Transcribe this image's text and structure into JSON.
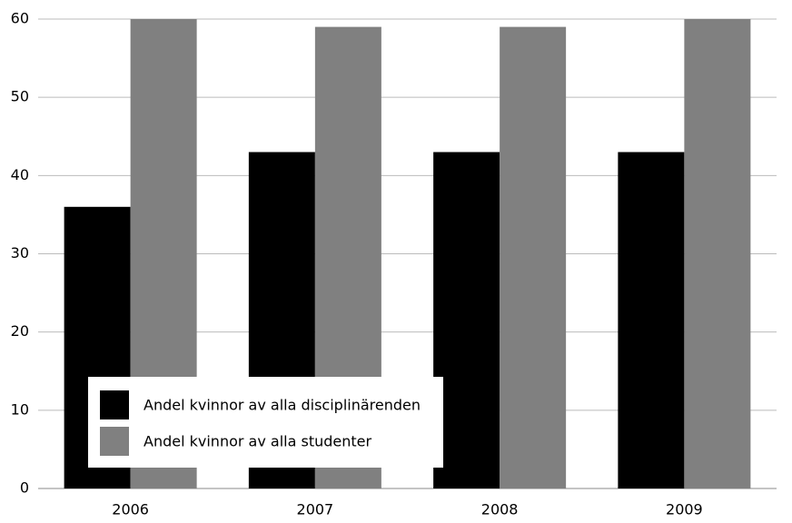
{
  "chart_data": {
    "type": "bar",
    "categories": [
      "2006",
      "2007",
      "2008",
      "2009"
    ],
    "series": [
      {
        "name": "Andel kvinnor av alla disciplinärenden",
        "color": "#000000",
        "values": [
          36,
          43,
          43,
          43
        ]
      },
      {
        "name": "Andel kvinnor av alla studenter",
        "color": "#808080",
        "values": [
          60,
          59,
          59,
          60
        ]
      }
    ],
    "ylim": [
      0,
      60
    ],
    "yticks": [
      0,
      10,
      20,
      30,
      40,
      50,
      60
    ],
    "grid": true,
    "legend": "lower left"
  }
}
